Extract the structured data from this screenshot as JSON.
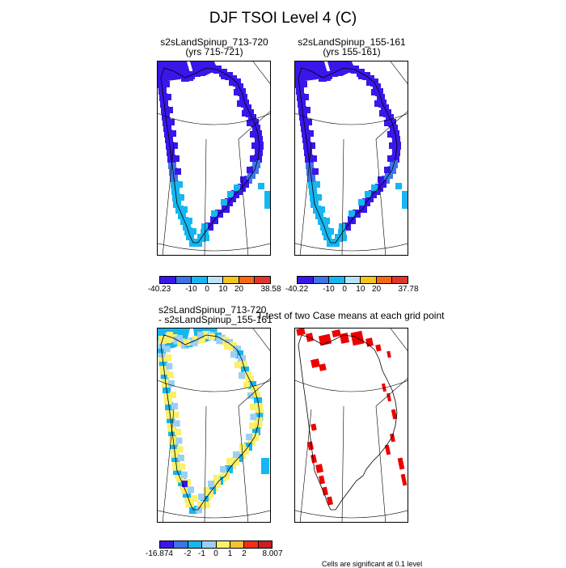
{
  "figure": {
    "title": "DJF TSOI Level 4 (C)",
    "note": "Cells are significant at 0.1 level"
  },
  "panels": [
    {
      "id": "case1",
      "title_line1": "s2sLandSpinup_713-720",
      "title_line2": "(yrs 715-721)",
      "fill_scheme": "temperature"
    },
    {
      "id": "case2",
      "title_line1": "s2sLandSpinup_155-161",
      "title_line2": "(yrs 155-161)",
      "fill_scheme": "temperature"
    },
    {
      "id": "diff",
      "title_line1": "s2sLandSpinup_713-720",
      "title_line2": "- s2sLandSpinup_155-161",
      "fill_scheme": "difference"
    },
    {
      "id": "ttest",
      "title_line1": "T-test of two Case means at each grid point",
      "title_line2": "",
      "fill_scheme": "significance"
    }
  ],
  "colorbars": [
    {
      "colors": [
        "#3a16ea",
        "#3c76e6",
        "#16b6f0",
        "#b8e4f6",
        "#f6c51b",
        "#f66a14",
        "#e2352a"
      ],
      "labels": [
        "-40.23",
        "-10",
        "0",
        "10",
        "20",
        "38.58"
      ]
    },
    {
      "colors": [
        "#3a16ea",
        "#3c76e6",
        "#16b6f0",
        "#b8e4f6",
        "#f6c51b",
        "#f66a14",
        "#e2352a"
      ],
      "labels": [
        "-40.22",
        "-10",
        "0",
        "10",
        "20",
        "37.78"
      ]
    },
    {
      "colors": [
        "#3a16ea",
        "#3c76e6",
        "#16b6f0",
        "#9ccff0",
        "#fbf069",
        "#f4c22d",
        "#f52d16",
        "#cf1e1e"
      ],
      "labels": [
        "-16.874",
        "-2",
        "-1",
        "0",
        "1",
        "2",
        "8.007"
      ]
    }
  ],
  "colors": {
    "temp_deep": "#3a16ea",
    "temp_coast": "#16b6f0",
    "temp_mid": "#3c76e6",
    "diff_neg": "#16b6f0",
    "diff_pos": "#fbf069",
    "diff_lightblue": "#9ccff0",
    "diff_strong": "#3a16ea",
    "significant": "#ee0000",
    "coastline": "#000000"
  }
}
